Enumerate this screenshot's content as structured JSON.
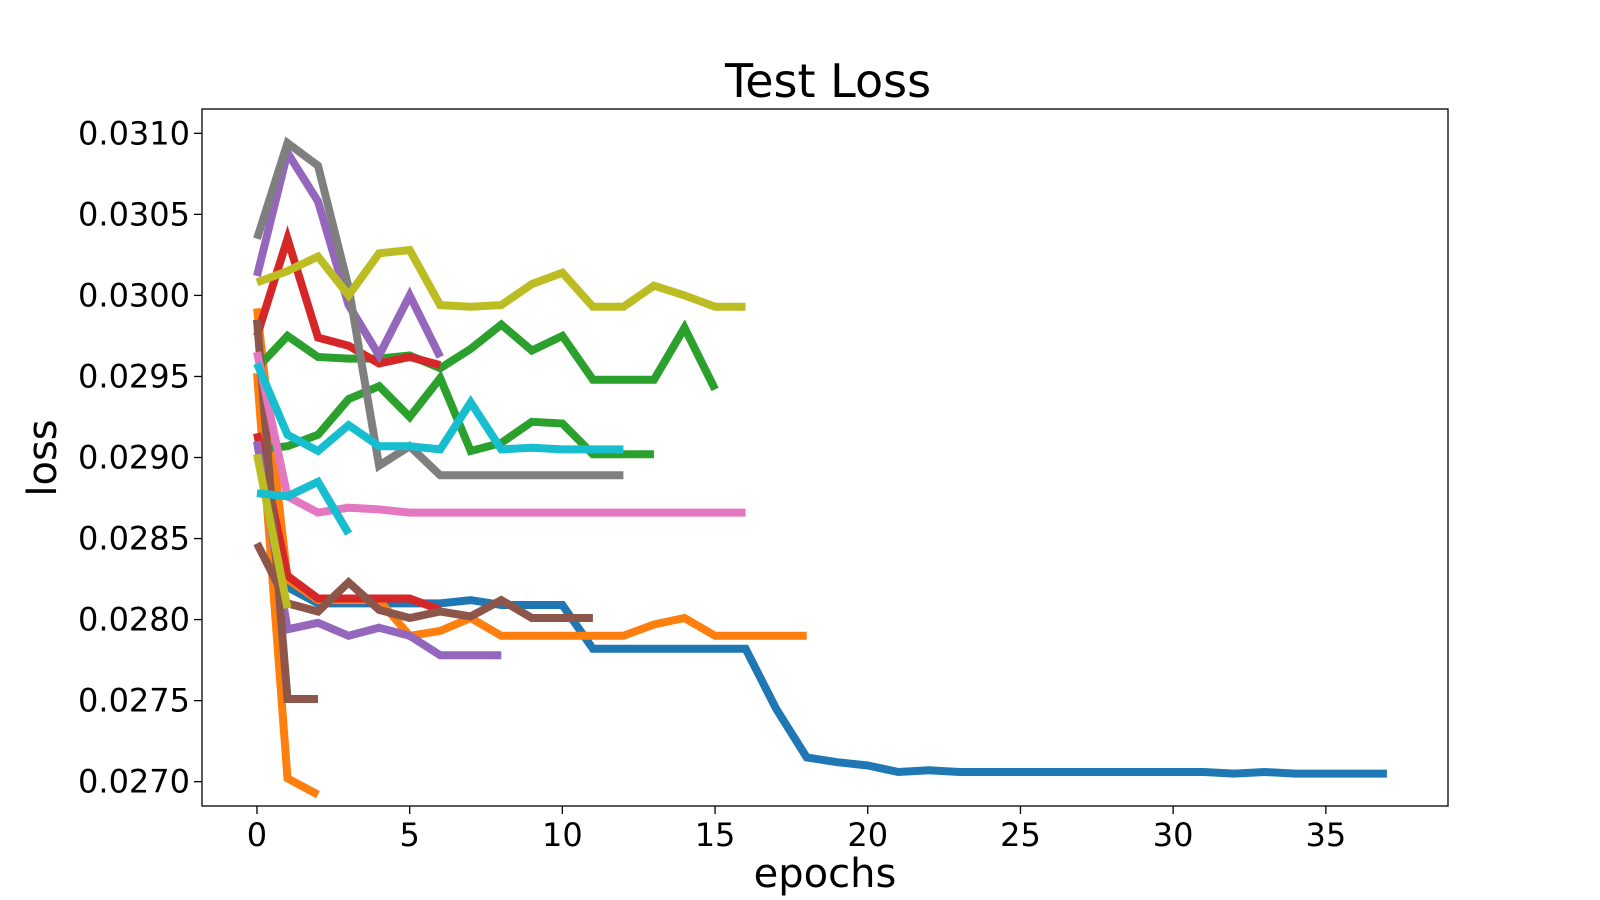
{
  "chart_data": {
    "type": "line",
    "title": "Test Loss",
    "xlabel": "epochs",
    "ylabel": "loss",
    "xlim": [
      -1.8,
      39
    ],
    "ylim": [
      0.02685,
      0.03115
    ],
    "xticks": [
      0,
      5,
      10,
      15,
      20,
      25,
      30,
      35
    ],
    "yticks": [
      0.027,
      0.0275,
      0.028,
      0.0285,
      0.029,
      0.0295,
      0.03,
      0.0305,
      0.031
    ],
    "ytick_labels": [
      "0.0270",
      "0.0275",
      "0.0280",
      "0.0285",
      "0.0290",
      "0.0295",
      "0.0300",
      "0.0305",
      "0.0310"
    ],
    "grid": false,
    "legend": "none",
    "series": [
      {
        "color": "#1f77b4",
        "values": [
          0.0291,
          0.0282,
          0.0281,
          0.0281,
          0.0281,
          0.0281,
          0.0281,
          0.02812,
          0.02809,
          0.02809,
          0.02809,
          0.02782,
          0.02782,
          0.02782,
          0.02782,
          0.02782,
          0.02782,
          0.02745,
          0.02715,
          0.02712,
          0.0271,
          0.02706,
          0.02707,
          0.02706,
          0.02706,
          0.02706,
          0.02706,
          0.02706,
          0.02706,
          0.02706,
          0.02706,
          0.02706,
          0.02705,
          0.02706,
          0.02705,
          0.02705,
          0.02705,
          0.02705
        ]
      },
      {
        "color": "#ff7f0e",
        "values": [
          0.02992,
          0.02825,
          0.02812,
          0.02812,
          0.02812,
          0.0279,
          0.02793,
          0.02801,
          0.0279,
          0.0279,
          0.0279,
          0.0279,
          0.0279,
          0.02797,
          0.02801,
          0.0279,
          0.0279,
          0.0279,
          0.0279
        ]
      },
      {
        "color": "#ff7f0e",
        "values": [
          0.02952,
          0.02702,
          0.02692
        ]
      },
      {
        "color": "#2ca02c",
        "values": [
          0.02955,
          0.02975,
          0.02962,
          0.02961,
          0.02961,
          0.02963,
          0.02955,
          0.02967,
          0.02982,
          0.02966,
          0.02975,
          0.02948,
          0.02948,
          0.02948,
          0.0298,
          0.02942
        ]
      },
      {
        "color": "#2ca02c",
        "values": [
          0.02905,
          0.02907,
          0.02914,
          0.02936,
          0.02944,
          0.02925,
          0.02949,
          0.02904,
          0.02909,
          0.02922,
          0.02921,
          0.02902,
          0.02902,
          0.02902
        ]
      },
      {
        "color": "#d62728",
        "values": [
          0.02975,
          0.03035,
          0.02974,
          0.02969,
          0.02958,
          0.02962,
          0.02957
        ]
      },
      {
        "color": "#d62728",
        "values": [
          0.02915,
          0.02827,
          0.02813,
          0.02813,
          0.02813,
          0.02813,
          0.02806
        ]
      },
      {
        "color": "#9467bd",
        "values": [
          0.03012,
          0.03088,
          0.03058,
          0.02994,
          0.02963,
          0.03,
          0.02962
        ]
      },
      {
        "color": "#9467bd",
        "values": [
          0.0291,
          0.02794,
          0.02798,
          0.0279,
          0.02795,
          0.0279,
          0.02778,
          0.02778,
          0.02778
        ]
      },
      {
        "color": "#8c564b",
        "values": [
          0.02847,
          0.0281,
          0.02805,
          0.02823,
          0.02806,
          0.02801,
          0.02805,
          0.02802,
          0.02812,
          0.02801,
          0.02801,
          0.02801
        ]
      },
      {
        "color": "#8c564b",
        "values": [
          0.02985,
          0.02751,
          0.02751
        ]
      },
      {
        "color": "#e377c2",
        "values": [
          0.02965,
          0.02876,
          0.02866,
          0.02869,
          0.02868,
          0.02866,
          0.02866,
          0.02866,
          0.02866,
          0.02866,
          0.02866,
          0.02866,
          0.02866,
          0.02866,
          0.02866,
          0.02866,
          0.02866
        ]
      },
      {
        "color": "#7f7f7f",
        "values": [
          0.03035,
          0.03094,
          0.0308,
          0.03005,
          0.02895,
          0.02907,
          0.02889,
          0.02889,
          0.02889,
          0.02889,
          0.02889,
          0.02889,
          0.02889
        ]
      },
      {
        "color": "#bcbd22",
        "values": [
          0.03008,
          0.03015,
          0.03024,
          0.03,
          0.03026,
          0.03028,
          0.02994,
          0.02993,
          0.02994,
          0.03007,
          0.03014,
          0.02993,
          0.02993,
          0.03006,
          0.03,
          0.02993,
          0.02993
        ]
      },
      {
        "color": "#bcbd22",
        "values": [
          0.02902,
          0.02807
        ]
      },
      {
        "color": "#17becf",
        "values": [
          0.02958,
          0.02914,
          0.02904,
          0.0292,
          0.02907,
          0.02907,
          0.02905,
          0.02934,
          0.02905,
          0.02906,
          0.02905,
          0.02905,
          0.02905
        ]
      },
      {
        "color": "#17becf",
        "values": [
          0.02878,
          0.02876,
          0.02885,
          0.02853
        ]
      }
    ]
  }
}
